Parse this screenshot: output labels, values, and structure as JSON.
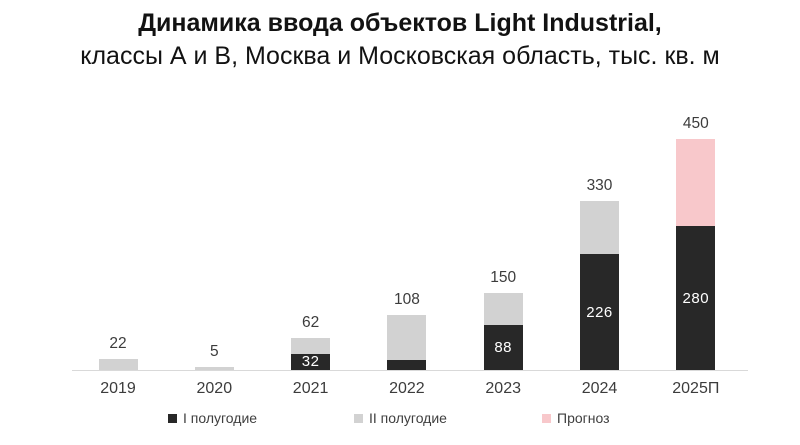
{
  "header": {
    "title_line1": "Динамика ввода объектов Light Industrial,",
    "title_line2": "классы А и В, Москва и Московская область, тыс. кв. м"
  },
  "colors": {
    "background": "#ffffff",
    "axis_line": "#d9d9d9",
    "value_label": "#3c3c3c",
    "inside_label": "#ffffff",
    "series_first_half": "#282828",
    "series_second_half": "#d2d2d2",
    "series_forecast": "#f8c8cb"
  },
  "chart_data": {
    "type": "bar",
    "stacked": true,
    "title": "Динамика ввода объектов Light Industrial, классы А и В, Москва и Московская область, тыс. кв. м",
    "units": "тыс. кв. м",
    "categories": [
      "2019",
      "2020",
      "2021",
      "2022",
      "2023",
      "2024",
      "2025П"
    ],
    "series": [
      {
        "name": "I полугодие",
        "color": "#282828",
        "values": [
          0,
          0,
          32,
          20,
          88,
          226,
          280
        ]
      },
      {
        "name": "II полугодие",
        "color": "#d2d2d2",
        "values": [
          22,
          5,
          30,
          88,
          62,
          104,
          0
        ]
      },
      {
        "name": "Прогноз",
        "color": "#f8c8cb",
        "values": [
          0,
          0,
          0,
          0,
          0,
          0,
          170
        ]
      }
    ],
    "totals": [
      "22",
      "5",
      "62",
      "108",
      "150",
      "330",
      "450"
    ],
    "inside_labels": [
      null,
      null,
      "32",
      null,
      "88",
      "226",
      "280"
    ],
    "ylim": [
      0,
      450
    ],
    "grid": false,
    "legend_position": "bottom"
  }
}
